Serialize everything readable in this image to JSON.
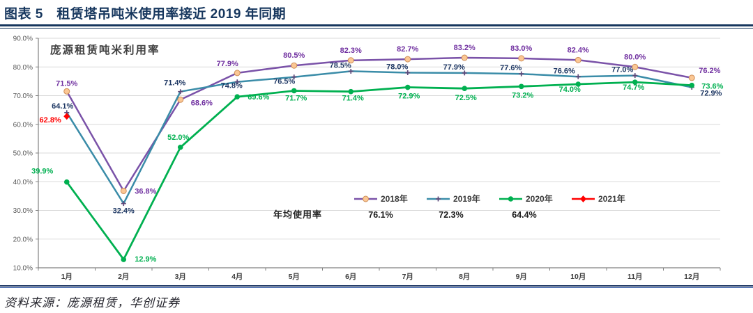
{
  "header": {
    "figure_title": "图表 5　租赁塔吊吨米使用率接近 2019 年同期"
  },
  "footer": {
    "source": "资料来源：庞源租赁，华创证券"
  },
  "chart_data": {
    "type": "line",
    "inner_title": "庞源租赁吨米利用率",
    "categories": [
      "1月",
      "2月",
      "3月",
      "4月",
      "5月",
      "6月",
      "7月",
      "8月",
      "9月",
      "10月",
      "11月",
      "12月"
    ],
    "ylim": [
      10,
      90
    ],
    "ytick_step": 10,
    "ytick_suffix": "%",
    "grid": true,
    "legend_position": "inside-bottom-center",
    "series": [
      {
        "name": "2018年",
        "color": "#7A52A8",
        "label_color": "#7030A0",
        "marker": "circle-peach",
        "values": [
          71.5,
          36.8,
          68.6,
          77.9,
          80.5,
          82.3,
          82.7,
          83.2,
          83.0,
          82.4,
          80.0,
          76.2
        ]
      },
      {
        "name": "2019年",
        "color": "#3A8CA8",
        "label_color": "#1F3864",
        "marker": "plus",
        "values": [
          64.1,
          32.4,
          71.4,
          74.8,
          76.5,
          78.5,
          78.0,
          77.9,
          77.6,
          76.6,
          77.0,
          72.9
        ]
      },
      {
        "name": "2020年",
        "color": "#00B050",
        "label_color": "#00B050",
        "marker": "dot",
        "values": [
          39.9,
          12.9,
          52.0,
          69.6,
          71.7,
          71.4,
          72.9,
          72.5,
          73.2,
          74.0,
          74.7,
          73.6
        ]
      },
      {
        "name": "2021年",
        "color": "#FF0000",
        "label_color": "#FF0000",
        "marker": "diamond",
        "values": [
          62.8,
          null,
          null,
          null,
          null,
          null,
          null,
          null,
          null,
          null,
          null,
          null
        ]
      }
    ],
    "avg_row": {
      "label": "年均使用率",
      "values": [
        "76.1%",
        "72.3%",
        "64.4%"
      ]
    }
  }
}
